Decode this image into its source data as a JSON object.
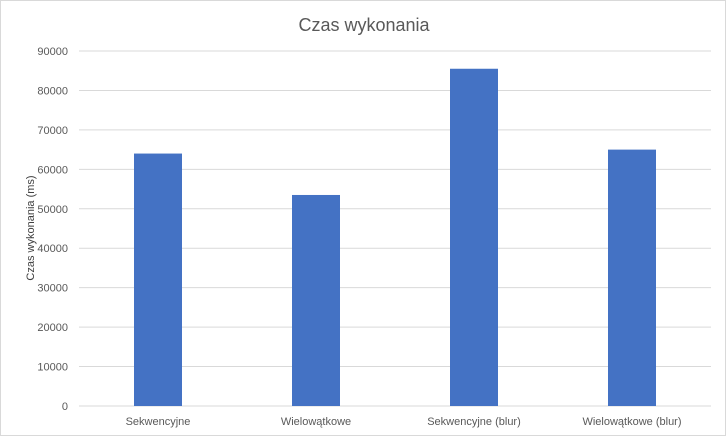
{
  "chart_data": {
    "type": "bar",
    "title": "Czas wykonania",
    "xlabel": "",
    "ylabel": "Czas wykonania (ms)",
    "categories": [
      "Sekwencyjne",
      "Wielowątkowe",
      "Sekwencyjne (blur)",
      "Wielowątkowe (blur)"
    ],
    "series": [
      {
        "values": [
          64000,
          53500,
          85500,
          65000
        ],
        "color": "#4472c4"
      }
    ],
    "ylim": [
      0,
      90000
    ],
    "yticks": [
      "0",
      "10000",
      "20000",
      "30000",
      "40000",
      "50000",
      "60000",
      "70000",
      "80000",
      "90000"
    ],
    "grid": true,
    "legend": "none"
  }
}
